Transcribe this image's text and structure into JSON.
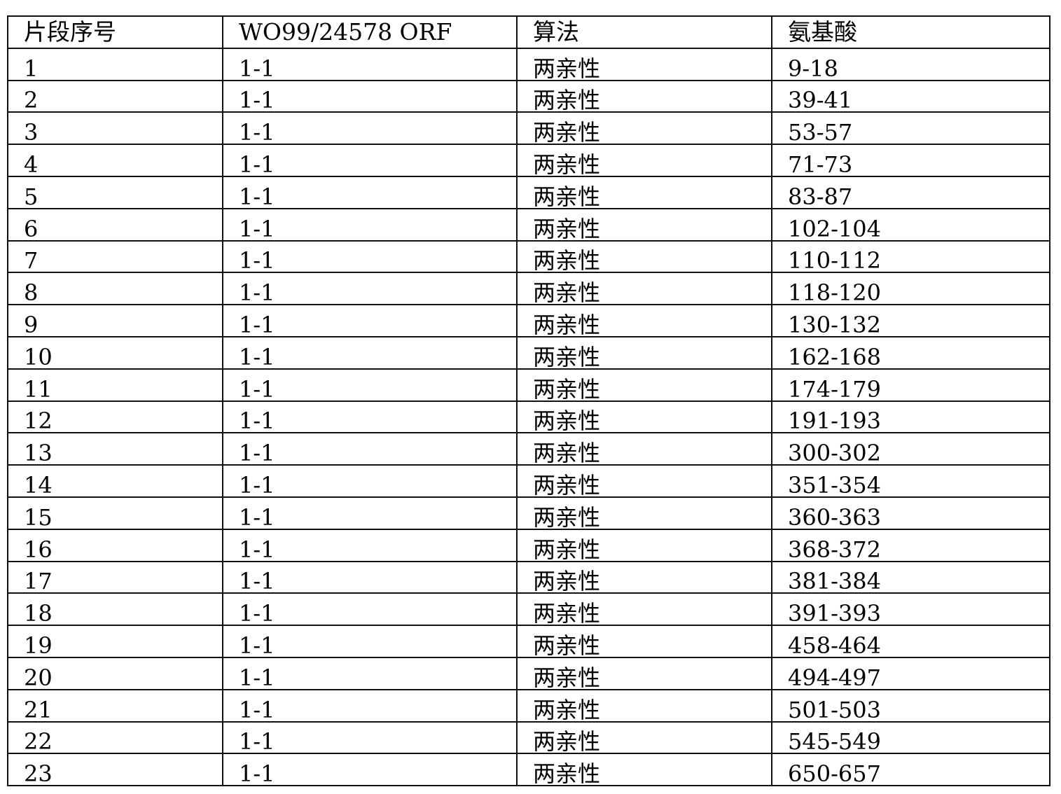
{
  "table": {
    "headers": [
      "片段序号",
      "WO99/24578 ORF",
      "算法",
      "氨基酸"
    ],
    "rows": [
      [
        "1",
        "1-1",
        "两亲性",
        "9-18"
      ],
      [
        "2",
        "1-1",
        "两亲性",
        "39-41"
      ],
      [
        "3",
        "1-1",
        "两亲性",
        "53-57"
      ],
      [
        "4",
        "1-1",
        "两亲性",
        "71-73"
      ],
      [
        "5",
        "1-1",
        "两亲性",
        "83-87"
      ],
      [
        "6",
        "1-1",
        "两亲性",
        "102-104"
      ],
      [
        "7",
        "1-1",
        "两亲性",
        "110-112"
      ],
      [
        "8",
        "1-1",
        "两亲性",
        "118-120"
      ],
      [
        "9",
        "1-1",
        "两亲性",
        "130-132"
      ],
      [
        "10",
        "1-1",
        "两亲性",
        "162-168"
      ],
      [
        "11",
        "1-1",
        "两亲性",
        "174-179"
      ],
      [
        "12",
        "1-1",
        "两亲性",
        "191-193"
      ],
      [
        "13",
        "1-1",
        "两亲性",
        "300-302"
      ],
      [
        "14",
        "1-1",
        "两亲性",
        "351-354"
      ],
      [
        "15",
        "1-1",
        "两亲性",
        "360-363"
      ],
      [
        "16",
        "1-1",
        "两亲性",
        "368-372"
      ],
      [
        "17",
        "1-1",
        "两亲性",
        "381-384"
      ],
      [
        "18",
        "1-1",
        "两亲性",
        "391-393"
      ],
      [
        "19",
        "1-1",
        "两亲性",
        "458-464"
      ],
      [
        "20",
        "1-1",
        "两亲性",
        "494-497"
      ],
      [
        "21",
        "1-1",
        "两亲性",
        "501-503"
      ],
      [
        "22",
        "1-1",
        "两亲性",
        "545-549"
      ],
      [
        "23",
        "1-1",
        "两亲性",
        "650-657"
      ]
    ]
  }
}
